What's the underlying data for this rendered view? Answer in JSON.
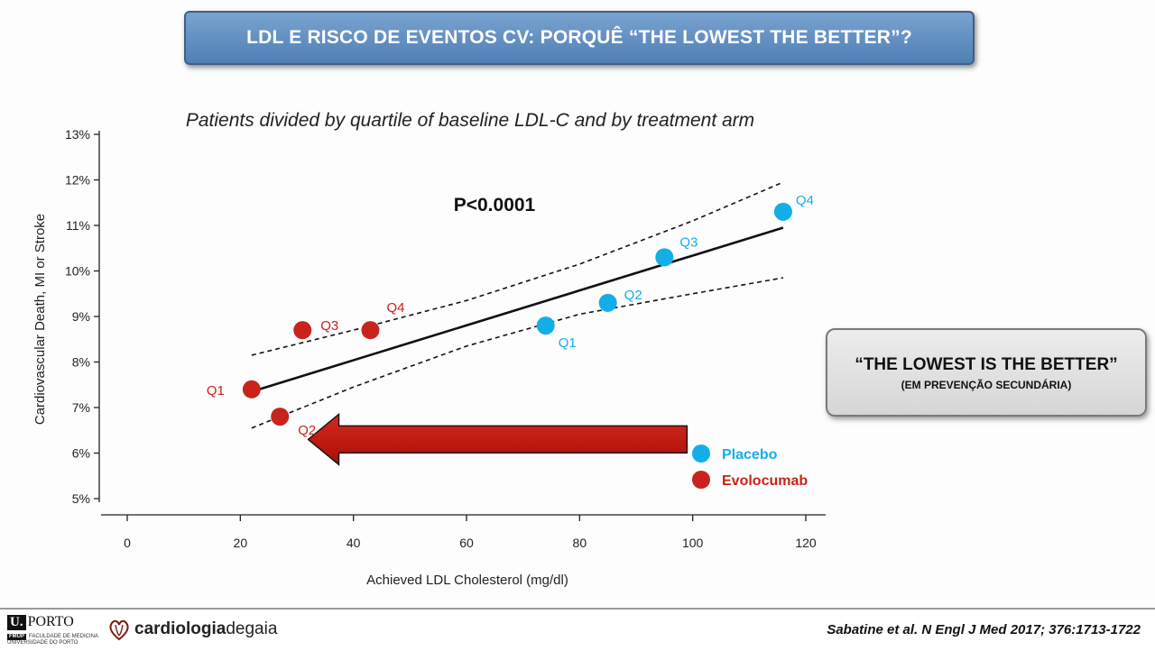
{
  "slide": {
    "title": "LDL E RISCO DE EVENTOS CV: PORQUÊ “THE LOWEST THE BETTER”?",
    "callout_main": "“THE LOWEST IS THE BETTER”",
    "callout_sub": "(EM PREVENÇÃO SECUNDÁRIA)",
    "citation": "Sabatine et al. N Engl J Med 2017; 376:1713-1722",
    "logo_uporto_u": "U.",
    "logo_uporto_name": "PORTO",
    "logo_fmup_tag": "FMUP",
    "logo_fmup_text": "FACULDADE DE MEDICINA UNIVERSIDADE DO PORTO",
    "logo_cdg_bold": "cardiologia",
    "logo_cdg_light": "degaia"
  },
  "chart_data": {
    "type": "scatter",
    "title": "Patients divided by quartile of baseline LDL-C and by treatment arm",
    "xlabel": "Achieved LDL Cholesterol (mg/dl)",
    "ylabel": "Cardiovascular Death, MI or Stroke",
    "xlim": [
      0,
      120
    ],
    "ylim": [
      5,
      13
    ],
    "x_ticks": [
      0,
      20,
      40,
      60,
      80,
      100,
      120
    ],
    "y_ticks": [
      5,
      6,
      7,
      8,
      9,
      10,
      11,
      12,
      13
    ],
    "y_tick_labels": [
      "5%",
      "6%",
      "7%",
      "8%",
      "9%",
      "10%",
      "11%",
      "12%",
      "13%"
    ],
    "annotation": "P<0.0001",
    "legend_position": "bottom-right",
    "series": [
      {
        "name": "Placebo",
        "color": "#12aee8",
        "points": [
          {
            "label": "Q1",
            "x": 74,
            "y": 8.8
          },
          {
            "label": "Q2",
            "x": 85,
            "y": 9.3
          },
          {
            "label": "Q3",
            "x": 95,
            "y": 10.3
          },
          {
            "label": "Q4",
            "x": 116,
            "y": 11.3
          }
        ]
      },
      {
        "name": "Evolocumab",
        "color": "#c8231c",
        "points": [
          {
            "label": "Q1",
            "x": 22,
            "y": 7.4
          },
          {
            "label": "Q2",
            "x": 27,
            "y": 6.8
          },
          {
            "label": "Q3",
            "x": 31,
            "y": 8.7
          },
          {
            "label": "Q4",
            "x": 43,
            "y": 8.7
          }
        ]
      }
    ],
    "regression": {
      "x": [
        22,
        116
      ],
      "y": [
        7.35,
        10.95
      ]
    },
    "ci_upper": {
      "x": [
        22,
        40,
        60,
        80,
        100,
        116
      ],
      "y": [
        8.15,
        8.7,
        9.35,
        10.15,
        11.1,
        11.95
      ]
    },
    "ci_lower": {
      "x": [
        22,
        40,
        60,
        80,
        100,
        116
      ],
      "y": [
        6.55,
        7.45,
        8.35,
        9.05,
        9.5,
        9.85
      ]
    },
    "arrow": {
      "from_x": 99,
      "to_x": 32,
      "y": 6.3,
      "color": "#c8190f"
    }
  }
}
